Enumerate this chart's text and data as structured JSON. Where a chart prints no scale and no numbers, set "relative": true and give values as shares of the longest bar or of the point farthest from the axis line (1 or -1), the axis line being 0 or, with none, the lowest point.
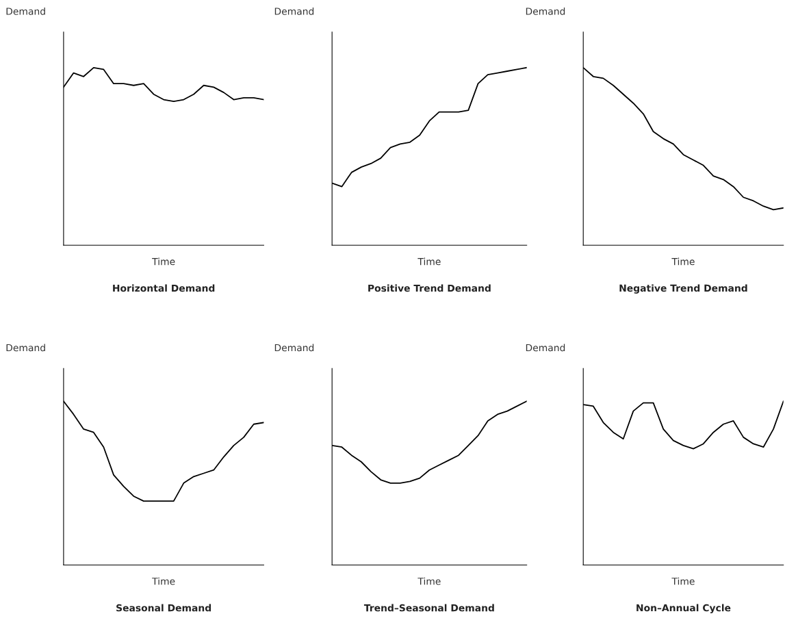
{
  "chart_data": [
    {
      "type": "line",
      "relative": true,
      "title": "Horizontal Demand",
      "xlabel": "Time",
      "ylabel": "Demand",
      "categories": [
        null,
        null,
        null,
        null,
        null,
        null,
        null,
        null,
        null,
        null,
        null,
        null,
        null,
        null,
        null,
        null,
        null,
        null,
        null,
        null,
        null
      ],
      "series": [
        {
          "color": "#000000",
          "values": [
            0.89,
            0.97,
            0.95,
            1,
            0.99,
            0.91,
            0.91,
            0.9,
            0.91,
            0.85,
            0.82,
            0.81,
            0.82,
            0.85,
            0.9,
            0.89,
            0.86,
            0.82,
            0.83,
            0.83,
            0.82
          ]
        }
      ]
    },
    {
      "type": "line",
      "relative": true,
      "title": "Positive Trend Demand",
      "xlabel": "Time",
      "ylabel": "Demand",
      "categories": [
        null,
        null,
        null,
        null,
        null,
        null,
        null,
        null,
        null,
        null,
        null,
        null,
        null,
        null,
        null,
        null,
        null,
        null,
        null,
        null,
        null
      ],
      "series": [
        {
          "color": "#000000",
          "values": [
            0.35,
            0.33,
            0.41,
            0.44,
            0.46,
            0.49,
            0.55,
            0.57,
            0.58,
            0.62,
            0.7,
            0.75,
            0.75,
            0.75,
            0.76,
            0.91,
            0.96,
            0.97,
            0.98,
            0.99,
            1
          ]
        }
      ]
    },
    {
      "type": "line",
      "relative": true,
      "title": "Negative Trend Demand",
      "xlabel": "Time",
      "ylabel": "Demand",
      "categories": [
        null,
        null,
        null,
        null,
        null,
        null,
        null,
        null,
        null,
        null,
        null,
        null,
        null,
        null,
        null,
        null,
        null,
        null,
        null,
        null,
        null
      ],
      "series": [
        {
          "color": "#000000",
          "values": [
            1,
            0.95,
            0.94,
            0.9,
            0.85,
            0.8,
            0.74,
            0.64,
            0.6,
            0.57,
            0.51,
            0.48,
            0.45,
            0.39,
            0.37,
            0.33,
            0.27,
            0.25,
            0.22,
            0.2,
            0.21
          ]
        }
      ]
    },
    {
      "type": "line",
      "relative": true,
      "title": "Seasonal Demand",
      "xlabel": "Time",
      "ylabel": "Demand",
      "categories": [
        null,
        null,
        null,
        null,
        null,
        null,
        null,
        null,
        null,
        null,
        null,
        null,
        null,
        null,
        null,
        null,
        null,
        null,
        null,
        null,
        null
      ],
      "series": [
        {
          "color": "#000000",
          "values": [
            1,
            0.92,
            0.83,
            0.81,
            0.72,
            0.55,
            0.48,
            0.42,
            0.39,
            0.39,
            0.39,
            0.39,
            0.5,
            0.54,
            0.56,
            0.58,
            0.66,
            0.73,
            0.78,
            0.86,
            0.87
          ]
        }
      ]
    },
    {
      "type": "line",
      "relative": true,
      "title": "Trend–Seasonal Demand",
      "xlabel": "Time",
      "ylabel": "Demand",
      "categories": [
        null,
        null,
        null,
        null,
        null,
        null,
        null,
        null,
        null,
        null,
        null,
        null,
        null,
        null,
        null,
        null,
        null,
        null,
        null,
        null,
        null
      ],
      "series": [
        {
          "color": "#000000",
          "values": [
            0.73,
            0.72,
            0.67,
            0.63,
            0.57,
            0.52,
            0.5,
            0.5,
            0.51,
            0.53,
            0.58,
            0.61,
            0.64,
            0.67,
            0.73,
            0.79,
            0.88,
            0.92,
            0.94,
            0.97,
            1
          ]
        }
      ]
    },
    {
      "type": "line",
      "relative": true,
      "title": "Non–Annual Cycle",
      "xlabel": "Time",
      "ylabel": "Demand",
      "categories": [
        null,
        null,
        null,
        null,
        null,
        null,
        null,
        null,
        null,
        null,
        null,
        null,
        null,
        null,
        null,
        null,
        null,
        null,
        null,
        null,
        null
      ],
      "series": [
        {
          "color": "#000000",
          "values": [
            0.98,
            0.97,
            0.87,
            0.81,
            0.77,
            0.94,
            0.99,
            0.99,
            0.83,
            0.76,
            0.73,
            0.71,
            0.74,
            0.81,
            0.86,
            0.88,
            0.78,
            0.74,
            0.72,
            0.83,
            1
          ]
        }
      ]
    }
  ]
}
